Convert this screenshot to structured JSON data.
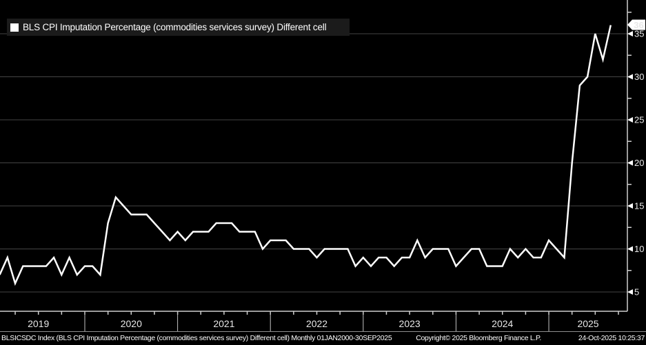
{
  "legend": {
    "series_label": "BLS CPI Imputation Percentage (commodities services survey) Different cell",
    "swatch_color": "#ffffff"
  },
  "last_value_badge": "36",
  "footer": {
    "left": "BLSICSDC Index (BLS CPI Imputation Percentage (commodities services survey) Different cell) Monthly 01JAN2000-30SEP2025",
    "copyright": "Copyright© 2025 Bloomberg Finance L.P.",
    "timestamp": "24-Oct-2025 10:25:37"
  },
  "chart_data": {
    "type": "line",
    "title": "BLS CPI Imputation Percentage (commodities services survey) Different cell",
    "frequency": "monthly",
    "start": "2019-02",
    "end": "2025-09",
    "values": [
      7,
      9,
      6,
      8,
      8,
      8,
      8,
      9,
      7,
      9,
      7,
      8,
      8,
      7,
      13,
      16,
      15,
      14,
      14,
      14,
      13,
      12,
      11,
      12,
      11,
      12,
      12,
      12,
      13,
      13,
      13,
      12,
      12,
      12,
      10,
      11,
      11,
      11,
      10,
      10,
      10,
      9,
      10,
      10,
      10,
      10,
      8,
      9,
      8,
      9,
      9,
      8,
      9,
      9,
      11,
      9,
      10,
      10,
      10,
      8,
      9,
      10,
      10,
      8,
      8,
      8,
      10,
      9,
      10,
      9,
      9,
      11,
      10,
      9,
      20,
      29,
      30,
      35,
      32,
      36
    ],
    "x_tick_years": [
      "2019",
      "2020",
      "2021",
      "2022",
      "2023",
      "2024",
      "2025"
    ],
    "y_ticks": [
      5,
      10,
      15,
      20,
      25,
      30,
      35
    ],
    "y_minor_tick_step": 2.5,
    "ylim": [
      2.8,
      38.9
    ],
    "last_value": 36,
    "line_color": "#ffffff",
    "background": "#000000",
    "grid": "horizontal-only",
    "y_axis_position": "right",
    "legend_position": "top-left"
  }
}
